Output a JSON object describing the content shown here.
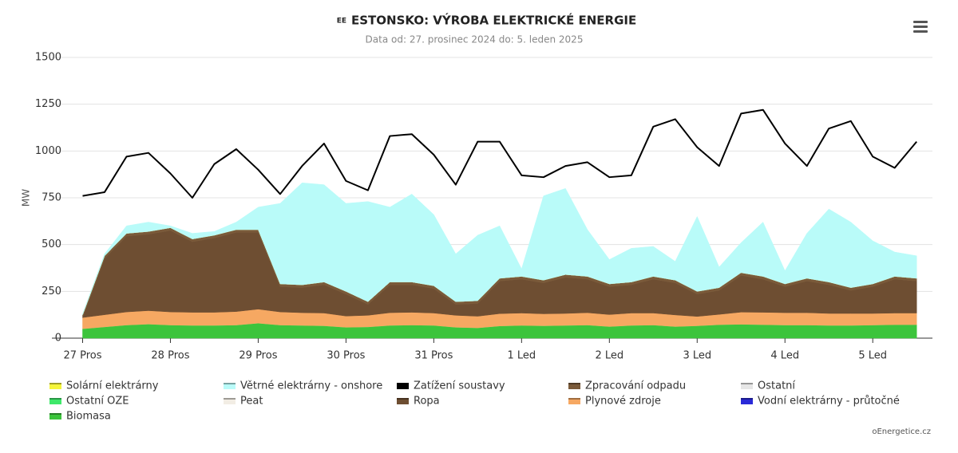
{
  "chart_data": {
    "type": "stacked-area",
    "title_prefix": "EE",
    "title": "ESTONSKO: VÝROBA ELEKTRICKÉ ENERGIE",
    "subtitle": "Data od: 27. prosinec 2024 do: 5. leden 2025",
    "y_label": "MW",
    "credit": "oEnergetice.cz",
    "xlim": [
      -0.35,
      9.68
    ],
    "ylim": [
      0,
      1500
    ],
    "yticks": [
      0,
      250,
      500,
      750,
      1000,
      1250,
      1500
    ],
    "xticks": [
      {
        "value": 0,
        "label": "27 Pros"
      },
      {
        "value": 1,
        "label": "28 Pros"
      },
      {
        "value": 2,
        "label": "29 Pros"
      },
      {
        "value": 3,
        "label": "30 Pros"
      },
      {
        "value": 4,
        "label": "31 Pros"
      },
      {
        "value": 5,
        "label": "1 Led"
      },
      {
        "value": 6,
        "label": "2 Led"
      },
      {
        "value": 7,
        "label": "3 Led"
      },
      {
        "value": 8,
        "label": "4 Led"
      },
      {
        "value": 9,
        "label": "5 Led"
      }
    ],
    "grid": true,
    "x": [
      0,
      0.25,
      0.5,
      0.75,
      1,
      1.25,
      1.5,
      1.75,
      2,
      2.25,
      2.5,
      2.75,
      3,
      3.25,
      3.5,
      3.75,
      4,
      4.25,
      4.5,
      4.75,
      5,
      5.25,
      5.5,
      5.75,
      6,
      6.25,
      6.5,
      6.75,
      7,
      7.25,
      7.5,
      7.75,
      8,
      8.25,
      8.5,
      8.75,
      9,
      9.25,
      9.5
    ],
    "stack_order": [
      10,
      5,
      8,
      7,
      3,
      6,
      4,
      9,
      0,
      1
    ],
    "series": [
      {
        "name": "Solární elektrárny",
        "color": "#f5f53a",
        "kind": "area",
        "values": [
          0,
          0,
          0,
          0,
          0,
          0,
          0,
          0,
          0,
          0,
          0,
          0,
          0,
          0,
          0,
          0,
          0,
          0,
          0,
          0,
          0,
          0,
          0,
          0,
          0,
          0,
          0,
          0,
          0,
          0,
          0,
          0,
          0,
          0,
          0,
          0,
          0,
          0,
          0
        ]
      },
      {
        "name": "Větrné elektrárny - onshore",
        "color": "#b9fbf9",
        "kind": "area",
        "values": [
          5,
          10,
          40,
          50,
          10,
          30,
          20,
          40,
          120,
          430,
          545,
          520,
          470,
          535,
          400,
          470,
          380,
          255,
          350,
          280,
          40,
          450,
          460,
          250,
          130,
          180,
          160,
          100,
          400,
          110,
          160,
          290,
          70,
          240,
          390,
          350,
          230,
          130,
          120
        ]
      },
      {
        "name": "Zatížení soustavy",
        "color": "#000000",
        "kind": "line",
        "values": [
          760,
          780,
          970,
          990,
          880,
          750,
          930,
          1010,
          900,
          770,
          920,
          1040,
          840,
          790,
          1080,
          1090,
          980,
          820,
          1050,
          1050,
          870,
          860,
          920,
          940,
          860,
          870,
          1130,
          1170,
          1020,
          920,
          1200,
          1220,
          1040,
          920,
          1120,
          1160,
          970,
          910,
          1050
        ]
      },
      {
        "name": "Zpracování odpadu",
        "color": "#7a5a3a",
        "kind": "area",
        "values": [
          15,
          15,
          15,
          15,
          15,
          15,
          15,
          15,
          15,
          15,
          15,
          15,
          15,
          15,
          15,
          15,
          15,
          15,
          15,
          15,
          15,
          15,
          15,
          15,
          15,
          15,
          15,
          15,
          15,
          15,
          15,
          15,
          15,
          15,
          15,
          15,
          15,
          15,
          15
        ]
      },
      {
        "name": "Ostatní",
        "color": "#e6e6e6",
        "kind": "area",
        "values": [
          0,
          0,
          0,
          0,
          0,
          0,
          0,
          0,
          0,
          0,
          0,
          0,
          0,
          0,
          0,
          0,
          0,
          0,
          0,
          0,
          0,
          0,
          0,
          0,
          0,
          0,
          0,
          0,
          0,
          0,
          0,
          0,
          0,
          0,
          0,
          0,
          0,
          0,
          0
        ]
      },
      {
        "name": "Ostatní OZE",
        "color": "#3ee86a",
        "kind": "area",
        "values": [
          0,
          0,
          0,
          0,
          0,
          0,
          0,
          0,
          0,
          0,
          0,
          0,
          0,
          0,
          0,
          0,
          0,
          0,
          0,
          0,
          0,
          0,
          0,
          0,
          0,
          0,
          0,
          0,
          0,
          0,
          0,
          0,
          0,
          0,
          0,
          0,
          0,
          0,
          0
        ]
      },
      {
        "name": "Peat",
        "color": "#f2ede4",
        "kind": "area",
        "values": [
          0,
          0,
          0,
          0,
          0,
          0,
          0,
          0,
          0,
          0,
          0,
          0,
          0,
          0,
          0,
          0,
          0,
          0,
          0,
          0,
          0,
          0,
          0,
          0,
          0,
          0,
          0,
          0,
          0,
          0,
          0,
          0,
          0,
          0,
          0,
          0,
          0,
          0,
          0
        ]
      },
      {
        "name": "Ropa",
        "color": "#6e4e32",
        "kind": "area",
        "values": [
          0,
          300,
          405,
          408,
          435,
          377,
          397,
          423,
          410,
          135,
          134,
          151,
          117,
          58,
          149,
          147,
          131,
          58,
          68,
          174,
          181,
          165,
          193,
          179,
          149,
          151,
          181,
          171,
          119,
          128,
          196,
          177,
          139,
          169,
          153,
          123,
          143,
          181,
          171
        ]
      },
      {
        "name": "Plynové zdroje",
        "color": "#f6a862",
        "kind": "area",
        "values": [
          60,
          65,
          70,
          72,
          70,
          70,
          70,
          72,
          75,
          70,
          68,
          68,
          60,
          62,
          68,
          68,
          66,
          64,
          62,
          66,
          66,
          64,
          64,
          66,
          64,
          66,
          64,
          62,
          50,
          55,
          65,
          66,
          66,
          66,
          64,
          64,
          62,
          62,
          62
        ]
      },
      {
        "name": "Vodní elektrárny - průtočné",
        "color": "#2a2ad8",
        "kind": "area",
        "values": [
          0,
          0,
          0,
          0,
          0,
          0,
          0,
          0,
          0,
          0,
          0,
          0,
          0,
          0,
          0,
          0,
          0,
          0,
          0,
          0,
          0,
          0,
          0,
          0,
          0,
          0,
          0,
          0,
          0,
          0,
          0,
          0,
          0,
          0,
          0,
          0,
          0,
          0,
          0
        ]
      },
      {
        "name": "Biomasa",
        "color": "#3cc43c",
        "kind": "area",
        "values": [
          50,
          60,
          70,
          75,
          70,
          68,
          68,
          70,
          80,
          70,
          68,
          66,
          58,
          60,
          68,
          70,
          68,
          58,
          55,
          65,
          68,
          66,
          68,
          70,
          62,
          68,
          70,
          62,
          66,
          72,
          74,
          72,
          70,
          70,
          68,
          68,
          70,
          72,
          72
        ]
      }
    ]
  }
}
